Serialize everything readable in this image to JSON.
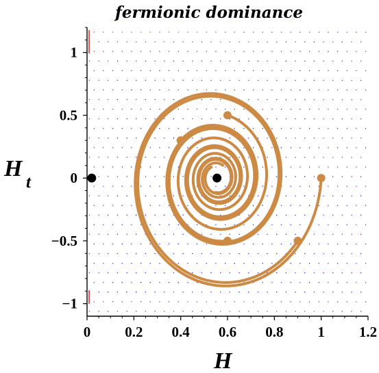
{
  "chart_data": {
    "type": "phase_portrait",
    "title": "fermionic dominance",
    "xlabel": "H",
    "ylabel": "H",
    "ylabel_subscript": "t",
    "xlim": [
      0,
      1.2
    ],
    "ylim": [
      -1.1,
      1.2
    ],
    "x_ticks": [
      "0",
      "0.2",
      "0.4",
      "0.6",
      "0.8",
      "1",
      "1.2"
    ],
    "x_tick_values": [
      0,
      0.2,
      0.4,
      0.6,
      0.8,
      1.0,
      1.2
    ],
    "y_ticks": [
      "1",
      "0.5",
      "0",
      "−0.5",
      "−1"
    ],
    "y_tick_values": [
      1,
      0.5,
      0,
      -0.5,
      -1
    ],
    "fixed_points": [
      {
        "H": 0.02,
        "Ht": 0
      },
      {
        "H": 0.555,
        "Ht": 0
      }
    ],
    "trajectory_starts": [
      {
        "H": 0.6,
        "Ht": 0.5
      },
      {
        "H": 0.4,
        "Ht": 0.3
      },
      {
        "H": 1.0,
        "Ht": 0.0
      },
      {
        "H": 0.6,
        "Ht": -0.5
      },
      {
        "H": 0.9,
        "Ht": -0.5
      }
    ],
    "colors": {
      "field": "#2a16cf",
      "field_edge": "#6a1ab0",
      "trajectory": "#cc8a45",
      "fixed_point": "#000000",
      "edge_marker": "#e02020"
    }
  }
}
